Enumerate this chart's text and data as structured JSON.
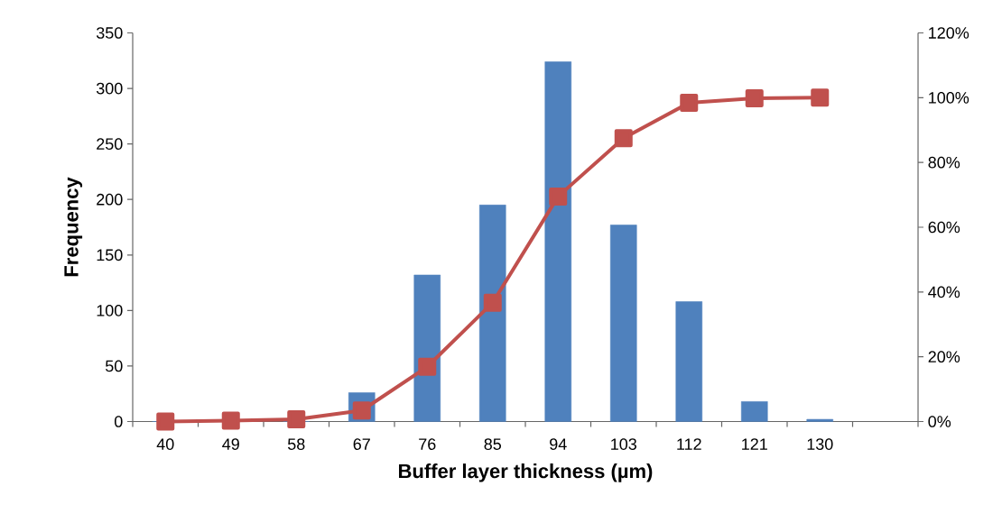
{
  "chart_data": {
    "type": "bar",
    "xlabel": "Buffer layer thickness (µm)",
    "ylabel": "Frequency",
    "categories": [
      "40",
      "49",
      "58",
      "67",
      "76",
      "85",
      "94",
      "103",
      "112",
      "121",
      "130",
      null
    ],
    "series": [
      {
        "color": "#4f81bd",
        "values": [
          0,
          0,
          0,
          26,
          132,
          195,
          324,
          177,
          108,
          18,
          2,
          null
        ]
      },
      {
        "type": "line",
        "axis": "y2",
        "color": "#c0504d",
        "marker": "square",
        "values": [
          0,
          0.3,
          0.7,
          3.4,
          16.9,
          36.7,
          69.5,
          87.5,
          98.4,
          99.8,
          100,
          null
        ]
      }
    ],
    "ylim": [
      0,
      350
    ],
    "yticks": [
      0,
      50,
      100,
      150,
      200,
      250,
      300,
      350
    ],
    "y2lim": [
      0,
      120
    ],
    "y2ticks": [
      {
        "value": 0,
        "label": "0%"
      },
      {
        "value": 20,
        "label": "20%"
      },
      {
        "value": 40,
        "label": "40%"
      },
      {
        "value": 60,
        "label": "60%"
      },
      {
        "value": 80,
        "label": "80%"
      },
      {
        "value": 100,
        "label": "100%"
      },
      {
        "value": 120,
        "label": "120%"
      }
    ],
    "grid": false
  }
}
